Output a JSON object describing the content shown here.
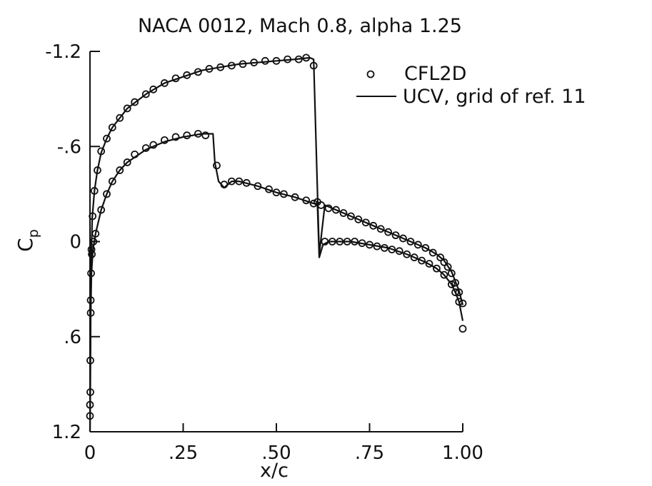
{
  "chart_data": {
    "type": "scatter",
    "title": "NACA 0012, Mach 0.8, alpha 1.25",
    "xlabel": "x/c",
    "ylabel": "Cp",
    "ylabel_main": "C",
    "ylabel_sub": "p",
    "xlim": [
      0,
      1.0
    ],
    "ylim": [
      1.2,
      -1.2
    ],
    "y_inverted": true,
    "x_ticks": [
      {
        "value": 0,
        "label": "0"
      },
      {
        "value": 0.25,
        "label": ".25"
      },
      {
        "value": 0.5,
        "label": ".50"
      },
      {
        "value": 0.75,
        "label": ".75"
      },
      {
        "value": 1.0,
        "label": "1.00"
      }
    ],
    "y_ticks": [
      {
        "value": -1.2,
        "label": "-1.2"
      },
      {
        "value": -0.6,
        "label": "-.6"
      },
      {
        "value": 0,
        "label": "0"
      },
      {
        "value": 0.6,
        "label": ".6"
      },
      {
        "value": 1.2,
        "label": "1.2"
      }
    ],
    "grid": false,
    "legend_position": "top-right",
    "series": [
      {
        "name": "CFL2D",
        "marker": "circle",
        "color": "#111111",
        "surfaces": [
          {
            "surface": "upper",
            "points": [
              [
                0.0,
                1.03
              ],
              [
                0.001,
                0.75
              ],
              [
                0.002,
                0.37
              ],
              [
                0.004,
                0.05
              ],
              [
                0.007,
                -0.16
              ],
              [
                0.012,
                -0.32
              ],
              [
                0.02,
                -0.45
              ],
              [
                0.03,
                -0.57
              ],
              [
                0.045,
                -0.65
              ],
              [
                0.06,
                -0.72
              ],
              [
                0.08,
                -0.78
              ],
              [
                0.1,
                -0.84
              ],
              [
                0.12,
                -0.88
              ],
              [
                0.15,
                -0.93
              ],
              [
                0.17,
                -0.96
              ],
              [
                0.2,
                -1.0
              ],
              [
                0.23,
                -1.03
              ],
              [
                0.26,
                -1.05
              ],
              [
                0.29,
                -1.07
              ],
              [
                0.32,
                -1.09
              ],
              [
                0.35,
                -1.1
              ],
              [
                0.38,
                -1.11
              ],
              [
                0.41,
                -1.12
              ],
              [
                0.44,
                -1.13
              ],
              [
                0.47,
                -1.14
              ],
              [
                0.5,
                -1.14
              ],
              [
                0.53,
                -1.15
              ],
              [
                0.56,
                -1.15
              ],
              [
                0.58,
                -1.16
              ],
              [
                0.6,
                -1.11
              ],
              [
                0.61,
                -0.25
              ],
              [
                0.62,
                -0.23
              ],
              [
                0.64,
                -0.21
              ],
              [
                0.66,
                -0.2
              ],
              [
                0.68,
                -0.18
              ],
              [
                0.7,
                -0.16
              ],
              [
                0.72,
                -0.14
              ],
              [
                0.74,
                -0.12
              ],
              [
                0.76,
                -0.1
              ],
              [
                0.78,
                -0.08
              ],
              [
                0.8,
                -0.06
              ],
              [
                0.82,
                -0.04
              ],
              [
                0.84,
                -0.02
              ],
              [
                0.86,
                0.0
              ],
              [
                0.88,
                0.02
              ],
              [
                0.9,
                0.04
              ],
              [
                0.92,
                0.07
              ],
              [
                0.94,
                0.1
              ],
              [
                0.95,
                0.13
              ],
              [
                0.96,
                0.16
              ],
              [
                0.97,
                0.2
              ],
              [
                0.98,
                0.26
              ],
              [
                0.99,
                0.32
              ],
              [
                1.0,
                0.39
              ]
            ]
          },
          {
            "surface": "lower",
            "points": [
              [
                0.0,
                1.1
              ],
              [
                0.001,
                0.95
              ],
              [
                0.002,
                0.45
              ],
              [
                0.003,
                0.2
              ],
              [
                0.005,
                0.08
              ],
              [
                0.009,
                0.0
              ],
              [
                0.015,
                -0.05
              ],
              [
                0.03,
                -0.2
              ],
              [
                0.045,
                -0.3
              ],
              [
                0.06,
                -0.38
              ],
              [
                0.08,
                -0.45
              ],
              [
                0.1,
                -0.5
              ],
              [
                0.12,
                -0.55
              ],
              [
                0.15,
                -0.59
              ],
              [
                0.17,
                -0.61
              ],
              [
                0.2,
                -0.64
              ],
              [
                0.23,
                -0.66
              ],
              [
                0.26,
                -0.67
              ],
              [
                0.29,
                -0.68
              ],
              [
                0.31,
                -0.67
              ],
              [
                0.34,
                -0.48
              ],
              [
                0.36,
                -0.36
              ],
              [
                0.38,
                -0.38
              ],
              [
                0.4,
                -0.38
              ],
              [
                0.42,
                -0.37
              ],
              [
                0.45,
                -0.35
              ],
              [
                0.48,
                -0.33
              ],
              [
                0.5,
                -0.31
              ],
              [
                0.52,
                -0.3
              ],
              [
                0.55,
                -0.28
              ],
              [
                0.58,
                -0.26
              ],
              [
                0.6,
                -0.24
              ],
              [
                0.63,
                0.0
              ],
              [
                0.65,
                0.0
              ],
              [
                0.67,
                0.0
              ],
              [
                0.69,
                0.0
              ],
              [
                0.71,
                0.0
              ],
              [
                0.73,
                0.01
              ],
              [
                0.75,
                0.02
              ],
              [
                0.77,
                0.03
              ],
              [
                0.79,
                0.04
              ],
              [
                0.81,
                0.05
              ],
              [
                0.83,
                0.06
              ],
              [
                0.85,
                0.08
              ],
              [
                0.87,
                0.1
              ],
              [
                0.89,
                0.12
              ],
              [
                0.91,
                0.14
              ],
              [
                0.93,
                0.17
              ],
              [
                0.95,
                0.21
              ],
              [
                0.97,
                0.27
              ],
              [
                0.98,
                0.32
              ],
              [
                0.99,
                0.38
              ],
              [
                1.0,
                0.55
              ]
            ]
          }
        ]
      },
      {
        "name": "UCV, grid of ref. 11",
        "marker": "line",
        "color": "#111111",
        "surfaces": [
          {
            "surface": "upper",
            "points": [
              [
                0.0,
                1.2
              ],
              [
                0.001,
                0.7
              ],
              [
                0.003,
                0.15
              ],
              [
                0.006,
                -0.15
              ],
              [
                0.012,
                -0.32
              ],
              [
                0.02,
                -0.45
              ],
              [
                0.03,
                -0.56
              ],
              [
                0.045,
                -0.65
              ],
              [
                0.06,
                -0.72
              ],
              [
                0.08,
                -0.78
              ],
              [
                0.1,
                -0.84
              ],
              [
                0.15,
                -0.93
              ],
              [
                0.2,
                -1.0
              ],
              [
                0.25,
                -1.04
              ],
              [
                0.3,
                -1.08
              ],
              [
                0.35,
                -1.1
              ],
              [
                0.4,
                -1.12
              ],
              [
                0.45,
                -1.13
              ],
              [
                0.5,
                -1.14
              ],
              [
                0.55,
                -1.15
              ],
              [
                0.59,
                -1.16
              ],
              [
                0.6,
                -1.15
              ],
              [
                0.615,
                0.08
              ],
              [
                0.63,
                -0.23
              ],
              [
                0.66,
                -0.2
              ],
              [
                0.7,
                -0.16
              ],
              [
                0.75,
                -0.11
              ],
              [
                0.8,
                -0.06
              ],
              [
                0.85,
                -0.01
              ],
              [
                0.9,
                0.04
              ],
              [
                0.93,
                0.08
              ],
              [
                0.95,
                0.12
              ],
              [
                0.97,
                0.19
              ],
              [
                0.98,
                0.25
              ],
              [
                0.99,
                0.31
              ],
              [
                1.0,
                0.4
              ]
            ]
          },
          {
            "surface": "lower",
            "points": [
              [
                0.0,
                1.2
              ],
              [
                0.001,
                0.9
              ],
              [
                0.002,
                0.45
              ],
              [
                0.004,
                0.2
              ],
              [
                0.008,
                0.05
              ],
              [
                0.015,
                -0.05
              ],
              [
                0.03,
                -0.2
              ],
              [
                0.045,
                -0.3
              ],
              [
                0.06,
                -0.38
              ],
              [
                0.08,
                -0.45
              ],
              [
                0.1,
                -0.5
              ],
              [
                0.15,
                -0.58
              ],
              [
                0.2,
                -0.63
              ],
              [
                0.25,
                -0.66
              ],
              [
                0.3,
                -0.68
              ],
              [
                0.33,
                -0.68
              ],
              [
                0.335,
                -0.5
              ],
              [
                0.345,
                -0.38
              ],
              [
                0.36,
                -0.34
              ],
              [
                0.38,
                -0.38
              ],
              [
                0.4,
                -0.38
              ],
              [
                0.45,
                -0.35
              ],
              [
                0.5,
                -0.31
              ],
              [
                0.55,
                -0.28
              ],
              [
                0.6,
                -0.24
              ],
              [
                0.61,
                -0.24
              ],
              [
                0.615,
                0.1
              ],
              [
                0.625,
                0.02
              ],
              [
                0.64,
                0.0
              ],
              [
                0.7,
                0.0
              ],
              [
                0.75,
                0.02
              ],
              [
                0.8,
                0.04
              ],
              [
                0.85,
                0.08
              ],
              [
                0.9,
                0.13
              ],
              [
                0.93,
                0.17
              ],
              [
                0.95,
                0.21
              ],
              [
                0.97,
                0.27
              ],
              [
                0.98,
                0.32
              ],
              [
                0.99,
                0.38
              ],
              [
                1.0,
                0.5
              ]
            ]
          }
        ]
      }
    ]
  }
}
